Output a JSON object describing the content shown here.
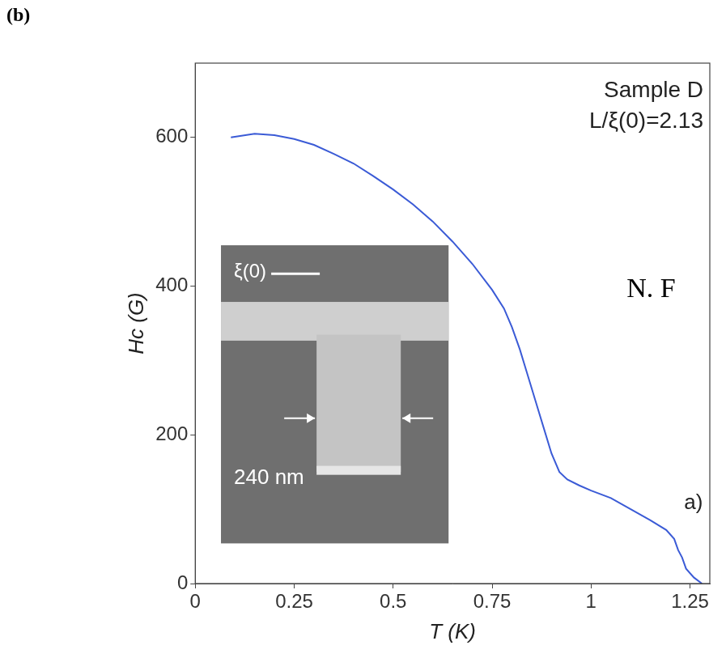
{
  "chart_data": {
    "type": "line",
    "panel": "(b)",
    "xlabel": "T (K)",
    "ylabel": "Hc (G)",
    "annotations": [
      "Sample D",
      "L/ξ(0)=2.13",
      "N. F",
      "a)"
    ],
    "inset_labels": [
      "ξ(0)",
      "240 nm"
    ],
    "x": [
      0.09,
      0.15,
      0.2,
      0.25,
      0.3,
      0.35,
      0.4,
      0.45,
      0.5,
      0.55,
      0.6,
      0.65,
      0.7,
      0.75,
      0.78,
      0.8,
      0.82,
      0.84,
      0.86,
      0.88,
      0.9,
      0.92,
      0.94,
      0.97,
      1.0,
      1.05,
      1.1,
      1.15,
      1.19,
      1.21,
      1.22,
      1.23,
      1.24,
      1.26,
      1.28
    ],
    "values": [
      600,
      605,
      603,
      598,
      590,
      578,
      565,
      548,
      530,
      510,
      487,
      460,
      430,
      395,
      370,
      345,
      315,
      280,
      245,
      210,
      175,
      150,
      140,
      132,
      125,
      115,
      100,
      85,
      72,
      60,
      45,
      35,
      20,
      8,
      0
    ],
    "color": "#3b5bd6",
    "xlim": [
      0,
      1.3
    ],
    "xticks": [
      0,
      0.25,
      0.5,
      0.75,
      1,
      1.25
    ],
    "ylim": [
      0,
      700
    ],
    "yticks": [
      0,
      200,
      400,
      600
    ],
    "grid": false
  }
}
